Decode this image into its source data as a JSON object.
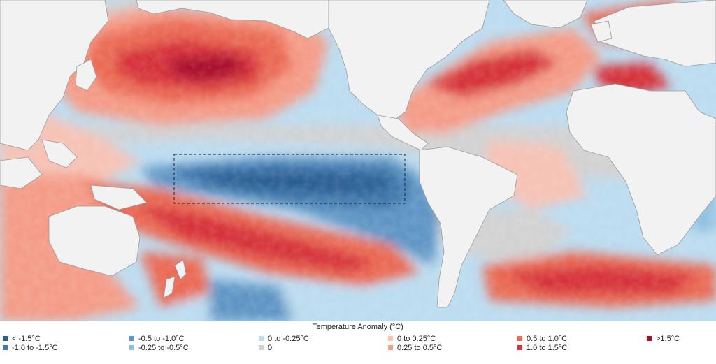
{
  "legend": {
    "title": "Temperature Anomaly (°C)",
    "items": [
      {
        "label": "< -1.5°C",
        "color": "#2a5d93"
      },
      {
        "label": "-1.0 to -1.5°C",
        "color": "#3f78ad"
      },
      {
        "label": "-0.5 to -1.0°C",
        "color": "#5f95c4"
      },
      {
        "label": "-0.25 to -0.5°C",
        "color": "#8fbfe0"
      },
      {
        "label": "0 to -0.25°C",
        "color": "#bcdcf0"
      },
      {
        "label": "0",
        "color": "#d2d2d2"
      },
      {
        "label": "0 to 0.25°C",
        "color": "#f6c2b5"
      },
      {
        "label": "0.25 to 0.5°C",
        "color": "#f49c88"
      },
      {
        "label": "0.5 to 1.0°C",
        "color": "#ea6a55"
      },
      {
        "label": "1.0 to 1.5°C",
        "color": "#d6333a"
      },
      {
        "label": ">1.5°C",
        "color": "#a8102d"
      }
    ]
  },
  "map": {
    "land_color": "#f2f2f2",
    "border_color": "#9a9a9a",
    "highlight_box": "dashed outline",
    "ocean_base_color": "#bcdcf0"
  }
}
